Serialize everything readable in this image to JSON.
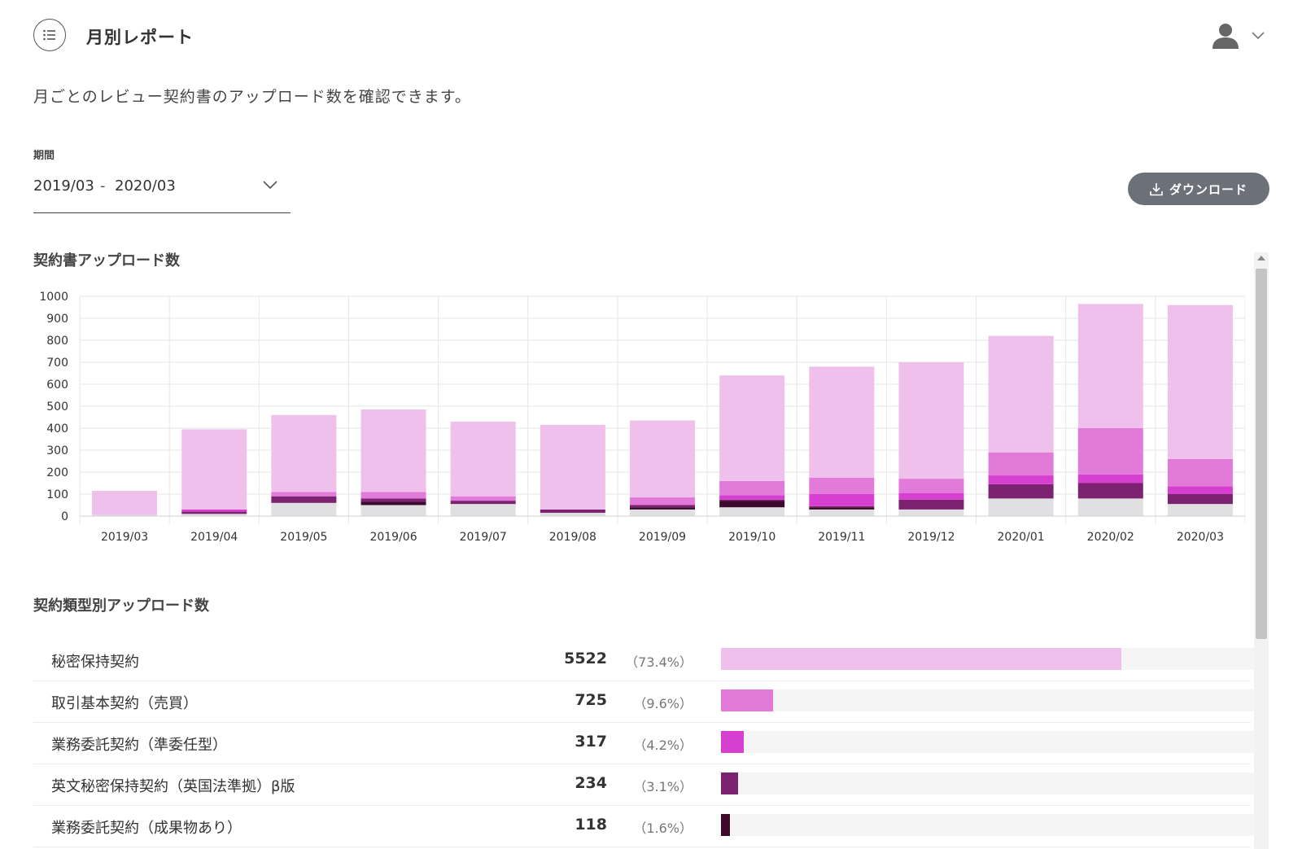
{
  "header": {
    "title": "月別レポート",
    "menu_icon": "list-icon",
    "user_icon": "user-icon"
  },
  "description": "月ごとのレビュー契約書のアップロード数を確認できます。",
  "period": {
    "label": "期間",
    "start": "2019/03",
    "separator": "-",
    "end": "2020/03"
  },
  "download": {
    "label": "ダウンロード",
    "icon": "download-icon"
  },
  "colors": {
    "series": [
      "#e0e0e3",
      "#3d0a2e",
      "#7d2270",
      "#d63fcf",
      "#e27ada",
      "#f0c0ec"
    ]
  },
  "chart_section_title": "契約書アップロード数",
  "chart_data": {
    "type": "bar",
    "stacked": true,
    "categories": [
      "2019/03",
      "2019/04",
      "2019/05",
      "2019/06",
      "2019/07",
      "2019/08",
      "2019/09",
      "2019/10",
      "2019/11",
      "2019/12",
      "2020/01",
      "2020/02",
      "2020/03"
    ],
    "series": [
      {
        "values": [
          5,
          10,
          60,
          50,
          55,
          15,
          30,
          40,
          30,
          30,
          80,
          80,
          55
        ]
      },
      {
        "values": [
          0,
          0,
          0,
          15,
          0,
          0,
          10,
          30,
          10,
          0,
          0,
          0,
          0
        ]
      },
      {
        "values": [
          0,
          10,
          30,
          15,
          15,
          15,
          10,
          5,
          5,
          45,
          65,
          70,
          45
        ]
      },
      {
        "values": [
          0,
          10,
          0,
          0,
          0,
          0,
          0,
          20,
          55,
          30,
          40,
          40,
          35
        ]
      },
      {
        "values": [
          0,
          0,
          20,
          30,
          20,
          0,
          35,
          65,
          75,
          65,
          105,
          210,
          125
        ]
      },
      {
        "values": [
          110,
          365,
          350,
          375,
          340,
          385,
          350,
          480,
          505,
          530,
          530,
          565,
          700
        ]
      }
    ],
    "ylim": [
      0,
      1000
    ],
    "yticks": [
      0,
      100,
      200,
      300,
      400,
      500,
      600,
      700,
      800,
      900,
      1000
    ],
    "grid": true
  },
  "type_section_title": "契約類型別アップロード数",
  "contract_types": [
    {
      "name": "秘密保持契約",
      "count": "5522",
      "percent": "（73.4%）",
      "share": 0.734,
      "color": "#f0c0ec"
    },
    {
      "name": "取引基本契約（売買）",
      "count": "725",
      "percent": "（9.6%）",
      "share": 0.096,
      "color": "#e27ada"
    },
    {
      "name": "業務委託契約（準委任型）",
      "count": "317",
      "percent": "（4.2%）",
      "share": 0.042,
      "color": "#d63fcf"
    },
    {
      "name": "英文秘密保持契約（英国法準拠）β版",
      "count": "234",
      "percent": "（3.1%）",
      "share": 0.031,
      "color": "#7d2270"
    },
    {
      "name": "業務委託契約（成果物あり）",
      "count": "118",
      "percent": "（1.6%）",
      "share": 0.016,
      "color": "#3d0a2e"
    }
  ]
}
